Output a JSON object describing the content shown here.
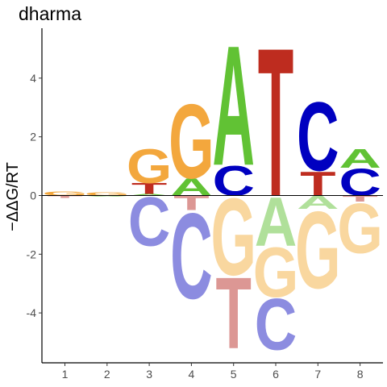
{
  "chart_data": {
    "type": "logo",
    "title": "dharma",
    "ylabel": "−ΔΔG/RT",
    "xlabel": "",
    "ylim": [
      -5.7,
      5.7
    ],
    "x_ticks": [
      "1",
      "2",
      "3",
      "4",
      "5",
      "6",
      "7",
      "8"
    ],
    "y_ticks": [
      -4,
      -2,
      0,
      2,
      4
    ],
    "colors": {
      "A_pos": "#61c234",
      "C_pos": "#0000c0",
      "G_pos": "#f3a73d",
      "T_pos": "#be2c1f",
      "A_neg": "#b0e09a",
      "C_neg": "#8c8ce0",
      "G_neg": "#f9d79f",
      "T_neg": "#dc9794"
    },
    "positions": [
      {
        "position": 1,
        "positive": [
          {
            "letter": "G",
            "height": 0.15
          }
        ],
        "negative": [
          {
            "letter": "T",
            "height": 0.08
          }
        ]
      },
      {
        "position": 2,
        "positive": [
          {
            "letter": "G",
            "height": 0.1
          }
        ],
        "negative": [
          {
            "letter": "A",
            "height": 0.04
          }
        ]
      },
      {
        "position": 3,
        "positive": [
          {
            "letter": "A",
            "height": 0.05
          },
          {
            "letter": "T",
            "height": 0.38
          },
          {
            "letter": "G",
            "height": 1.2
          }
        ],
        "negative": [
          {
            "letter": "C",
            "height": 1.7
          }
        ]
      },
      {
        "position": 4,
        "positive": [
          {
            "letter": "A",
            "height": 0.6
          },
          {
            "letter": "G",
            "height": 2.6
          }
        ],
        "negative": [
          {
            "letter": "T",
            "height": 0.5
          },
          {
            "letter": "C",
            "height": 3.0
          }
        ]
      },
      {
        "position": 5,
        "positive": [
          {
            "letter": "C",
            "height": 1.05
          },
          {
            "letter": "A",
            "height": 4.2
          }
        ],
        "negative": [
          {
            "letter": "G",
            "height": 2.7
          },
          {
            "letter": "T",
            "height": 2.5
          }
        ]
      },
      {
        "position": 6,
        "positive": [
          {
            "letter": "T",
            "height": 5.2
          }
        ],
        "negative": [
          {
            "letter": "A",
            "height": 1.7
          },
          {
            "letter": "G",
            "height": 1.75
          },
          {
            "letter": "C",
            "height": 1.8
          }
        ]
      },
      {
        "position": 7,
        "positive": [
          {
            "letter": "T",
            "height": 0.85
          },
          {
            "letter": "C",
            "height": 2.4
          }
        ],
        "negative": [
          {
            "letter": "A",
            "height": 0.45
          },
          {
            "letter": "G",
            "height": 2.7
          }
        ]
      },
      {
        "position": 8,
        "positive": [
          {
            "letter": "C",
            "height": 0.95
          },
          {
            "letter": "A",
            "height": 0.65
          }
        ],
        "negative": [
          {
            "letter": "T",
            "height": 0.2
          },
          {
            "letter": "G",
            "height": 1.75
          }
        ]
      }
    ]
  }
}
